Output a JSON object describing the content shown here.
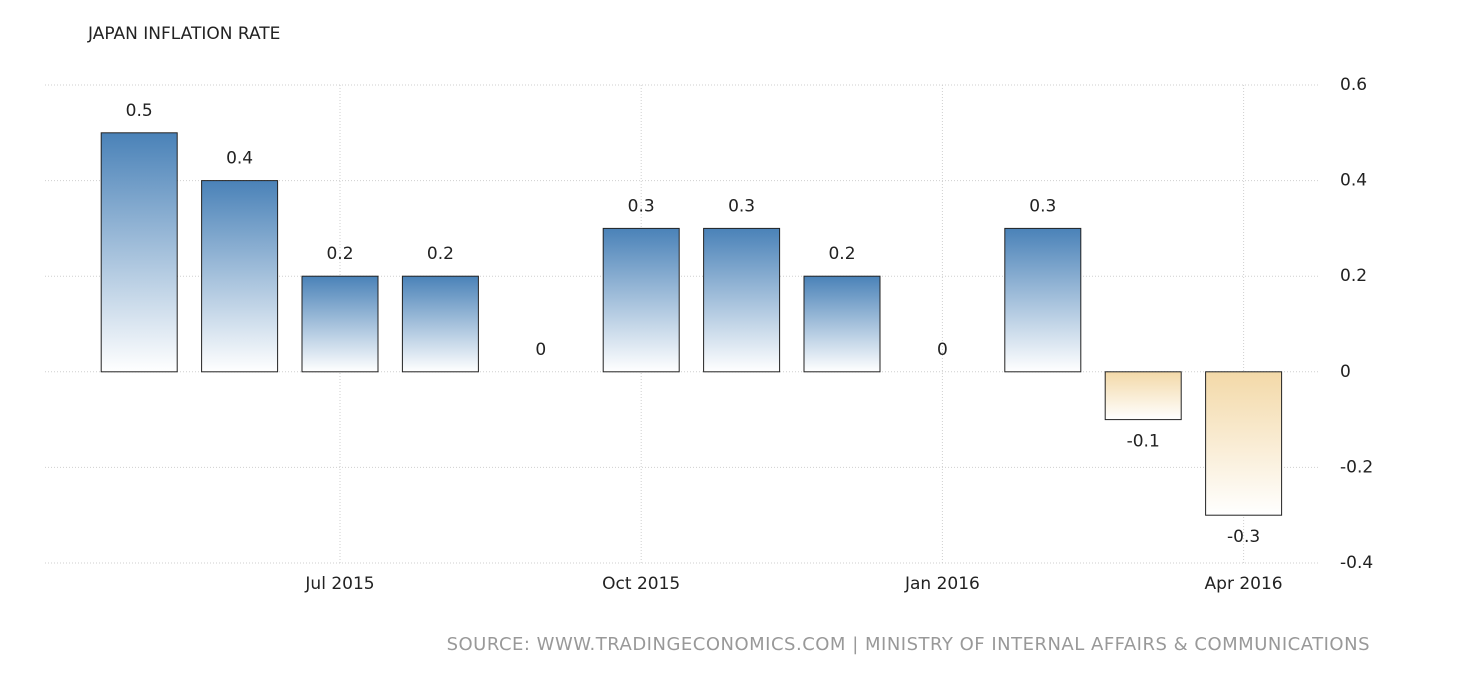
{
  "chart_data": {
    "type": "bar",
    "title": "JAPAN INFLATION RATE",
    "source": "SOURCE: WWW.TRADINGECONOMICS.COM | MINISTRY OF INTERNAL AFFAIRS & COMMUNICATIONS",
    "categories": [
      null,
      null,
      "Jul 2015",
      null,
      null,
      "Oct 2015",
      null,
      null,
      "Jan 2016",
      null,
      null,
      "Apr 2016"
    ],
    "values": [
      0.5,
      0.4,
      0.2,
      0.2,
      0,
      0.3,
      0.3,
      0.2,
      0,
      0.3,
      -0.1,
      -0.3
    ],
    "color": "#4a82b8",
    "negative_color": "#f3d9a8",
    "ylim": [
      -0.4,
      0.6
    ],
    "yticks": [
      -0.4,
      -0.2,
      0,
      0.2,
      0.4,
      0.6
    ],
    "grid": true
  }
}
